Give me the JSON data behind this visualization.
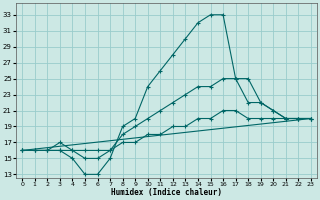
{
  "xlabel": "Humidex (Indice chaleur)",
  "bg_color": "#cce8e4",
  "grid_color": "#99cccc",
  "line_color": "#006666",
  "x_ticks": [
    0,
    1,
    2,
    3,
    4,
    5,
    6,
    7,
    8,
    9,
    10,
    11,
    12,
    13,
    14,
    15,
    16,
    17,
    18,
    19,
    20,
    21,
    22,
    23
  ],
  "y_ticks": [
    13,
    15,
    17,
    19,
    21,
    23,
    25,
    27,
    29,
    31,
    33
  ],
  "xlim": [
    -0.5,
    23.5
  ],
  "ylim": [
    12.5,
    34.5
  ],
  "lines": [
    {
      "x": [
        0,
        1,
        2,
        3,
        4,
        5,
        6,
        7,
        8,
        9,
        10,
        11,
        12,
        13,
        14,
        15,
        16,
        17,
        18,
        19,
        20,
        21,
        22,
        23
      ],
      "y": [
        16,
        16,
        16,
        16,
        15,
        13,
        13,
        15,
        19,
        20,
        24,
        26,
        28,
        30,
        32,
        33,
        33,
        25,
        25,
        22,
        21,
        20,
        20,
        20
      ],
      "marker": true
    },
    {
      "x": [
        0,
        1,
        2,
        3,
        4,
        5,
        6,
        7,
        8,
        9,
        10,
        11,
        12,
        13,
        14,
        15,
        16,
        17,
        18,
        19,
        20,
        21,
        22,
        23
      ],
      "y": [
        16,
        16,
        16,
        17,
        16,
        15,
        15,
        16,
        18,
        19,
        20,
        21,
        22,
        23,
        24,
        24,
        25,
        25,
        22,
        22,
        21,
        20,
        20,
        20
      ],
      "marker": true
    },
    {
      "x": [
        0,
        1,
        2,
        3,
        4,
        5,
        6,
        7,
        8,
        9,
        10,
        11,
        12,
        13,
        14,
        15,
        16,
        17,
        18,
        19,
        20,
        21,
        22,
        23
      ],
      "y": [
        16,
        16,
        16,
        16,
        16,
        16,
        16,
        16,
        17,
        17,
        18,
        18,
        19,
        19,
        20,
        20,
        21,
        21,
        20,
        20,
        20,
        20,
        20,
        20
      ],
      "marker": true
    },
    {
      "x": [
        0,
        23
      ],
      "y": [
        16,
        20
      ],
      "marker": false
    }
  ]
}
